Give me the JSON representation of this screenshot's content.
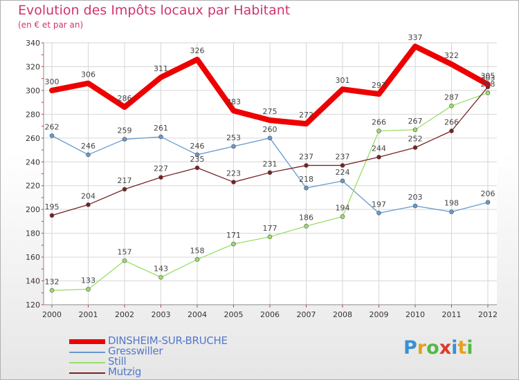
{
  "header": {
    "title": "Evolution des Impôts locaux par Habitant",
    "subtitle": "(en € et par an)"
  },
  "logo": {
    "text": "Proxiti",
    "colors": [
      "#3a8fd6",
      "#e6a21a",
      "#56b847",
      "#e2382b",
      "#3a8fd6",
      "#e6a21a",
      "#56b847"
    ]
  },
  "chart_data": {
    "type": "line",
    "title": "Evolution des Impôts locaux par Habitant",
    "subtitle": "(en € et par an)",
    "xlabel": "",
    "ylabel": "",
    "x": [
      "2000",
      "2001",
      "2002",
      "2003",
      "2004",
      "2005",
      "2006",
      "2007",
      "2008",
      "2009",
      "2010",
      "2011",
      "2012"
    ],
    "ylim": [
      120,
      340
    ],
    "yticks": [
      120,
      140,
      160,
      180,
      200,
      220,
      240,
      260,
      280,
      300,
      320,
      340
    ],
    "grid": "horizontal",
    "legend_placement": "bottom-left",
    "series": [
      {
        "name": "DINSHEIM-SUR-BRUCHE",
        "color": "#ee0000",
        "values": [
          300,
          306,
          286,
          311,
          326,
          283,
          275,
          272,
          301,
          297,
          337,
          322,
          305
        ]
      },
      {
        "name": "Gresswiller",
        "color": "#6699cc",
        "values": [
          262,
          246,
          259,
          261,
          246,
          253,
          260,
          218,
          224,
          197,
          203,
          198,
          206
        ]
      },
      {
        "name": "Still",
        "color": "#99dd66",
        "values": [
          132,
          133,
          157,
          143,
          158,
          171,
          177,
          186,
          194,
          266,
          267,
          287,
          298
        ]
      },
      {
        "name": "Mutzig",
        "color": "#772222",
        "values": [
          195,
          204,
          217,
          227,
          235,
          223,
          231,
          237,
          237,
          244,
          252,
          266,
          303
        ]
      }
    ]
  }
}
